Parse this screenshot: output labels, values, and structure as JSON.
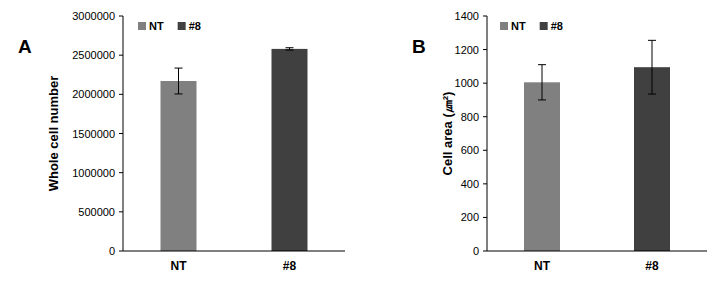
{
  "chart_data": [
    {
      "type": "bar",
      "title": "A",
      "y_label": "Whole cell number",
      "categories": [
        "NT",
        "#8"
      ],
      "values": [
        2170000,
        2580000
      ],
      "errors": [
        165000,
        15000
      ],
      "colors": [
        "#808080",
        "#404040"
      ],
      "legend": "top-left",
      "ylim": [
        0,
        3000000
      ],
      "yticks": [
        0,
        500000,
        1000000,
        1500000,
        2000000,
        2500000,
        3000000
      ],
      "grid": false
    },
    {
      "type": "bar",
      "title": "B",
      "y_label": "Cell area (㎛²)",
      "categories": [
        "NT",
        "#8"
      ],
      "values": [
        1005,
        1095
      ],
      "errors": [
        105,
        160
      ],
      "colors": [
        "#808080",
        "#404040"
      ],
      "legend": "top-left",
      "ylim": [
        0,
        1400
      ],
      "yticks": [
        0,
        200,
        400,
        600,
        800,
        1000,
        1200,
        1400
      ],
      "grid": false
    }
  ]
}
